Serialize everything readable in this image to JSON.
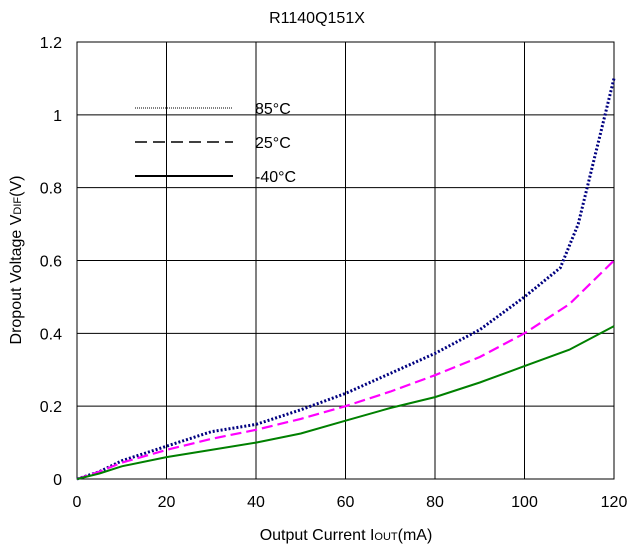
{
  "chart_data": {
    "type": "line",
    "title": "R1140Q151X",
    "xlabel_main": "Output Current I",
    "xlabel_sub": "OUT",
    "xlabel_tail": "(mA)",
    "ylabel_main": "Dropout Voltage V",
    "ylabel_sub": "DIF",
    "ylabel_tail": "(V)",
    "xlim": [
      0,
      120
    ],
    "ylim": [
      0,
      1.2
    ],
    "x_ticks": [
      "0",
      "20",
      "40",
      "60",
      "80",
      "100",
      "120"
    ],
    "y_ticks": [
      "0",
      "0.2",
      "0.4",
      "0.6",
      "0.8",
      "1",
      "1.2"
    ],
    "grid": true,
    "legend_position": "top-left",
    "series": [
      {
        "name": "85°C",
        "color": "#000080",
        "dash": "dotted",
        "x": [
          0,
          5,
          10,
          20,
          30,
          40,
          50,
          60,
          70,
          80,
          90,
          100,
          108,
          112,
          116,
          120
        ],
        "y": [
          0,
          0.02,
          0.05,
          0.09,
          0.13,
          0.15,
          0.19,
          0.235,
          0.29,
          0.345,
          0.41,
          0.5,
          0.58,
          0.7,
          0.9,
          1.1
        ]
      },
      {
        "name": "25°C",
        "color": "#ff00ff",
        "dash": "dashed",
        "x": [
          0,
          5,
          10,
          20,
          30,
          40,
          50,
          60,
          70,
          80,
          90,
          100,
          110,
          120
        ],
        "y": [
          0,
          0.02,
          0.045,
          0.08,
          0.11,
          0.135,
          0.165,
          0.2,
          0.24,
          0.285,
          0.335,
          0.4,
          0.48,
          0.6
        ]
      },
      {
        "name": "-40°C",
        "color": "#008000",
        "dash": "solid",
        "x": [
          0,
          5,
          10,
          20,
          30,
          40,
          50,
          60,
          70,
          80,
          90,
          100,
          110,
          120
        ],
        "y": [
          0,
          0.015,
          0.035,
          0.06,
          0.08,
          0.1,
          0.125,
          0.16,
          0.195,
          0.225,
          0.265,
          0.31,
          0.355,
          0.42
        ]
      }
    ]
  }
}
